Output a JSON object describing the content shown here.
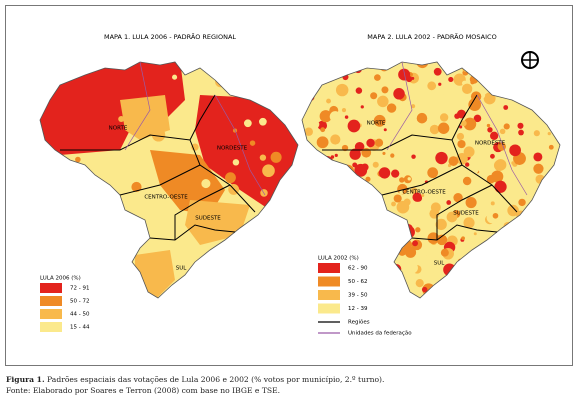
{
  "maps": [
    {
      "title": "MAPA 1. LULA 2006 - PADRÃO REGIONAL",
      "region_labels": [
        "NORTE",
        "NORDESTE",
        "CENTRO-OESTE",
        "SUDESTE",
        "SUL"
      ],
      "legend_title": "LULA 2006 (%)",
      "legend": [
        {
          "label": "72 - 91",
          "color": "#e3231d"
        },
        {
          "label": "50 - 72",
          "color": "#ef8a25"
        },
        {
          "label": "44 - 50",
          "color": "#f8b94c"
        },
        {
          "label": "15 - 44",
          "color": "#fbe98c"
        }
      ]
    },
    {
      "title": "MAPA 2. LULA 2002 - PADRÃO MOSAICO",
      "region_labels": [
        "NORTE",
        "NORDESTE",
        "CENTRO-OESTE",
        "SUDESTE",
        "SUL"
      ],
      "legend_title": "LULA 2002 (%)",
      "legend": [
        {
          "label": "62 - 90",
          "color": "#e3231d"
        },
        {
          "label": "50 - 62",
          "color": "#ef8a25"
        },
        {
          "label": "39 - 50",
          "color": "#f8b94c"
        },
        {
          "label": "12 - 39",
          "color": "#fbe98c"
        }
      ],
      "line_legend": [
        {
          "label": "Regiões",
          "color": "#000000"
        },
        {
          "label": "Unidades da federação",
          "color": "#9a5aa6"
        }
      ]
    }
  ],
  "caption": {
    "label": "Figura 1.",
    "text": "Padrões espaciais das votações de Lula 2006 e 2002 (% votos por município, 2.º turno).",
    "source": "Fonte: Elaborado por Soares e Terron (2008) com base no IBGE e TSE."
  }
}
